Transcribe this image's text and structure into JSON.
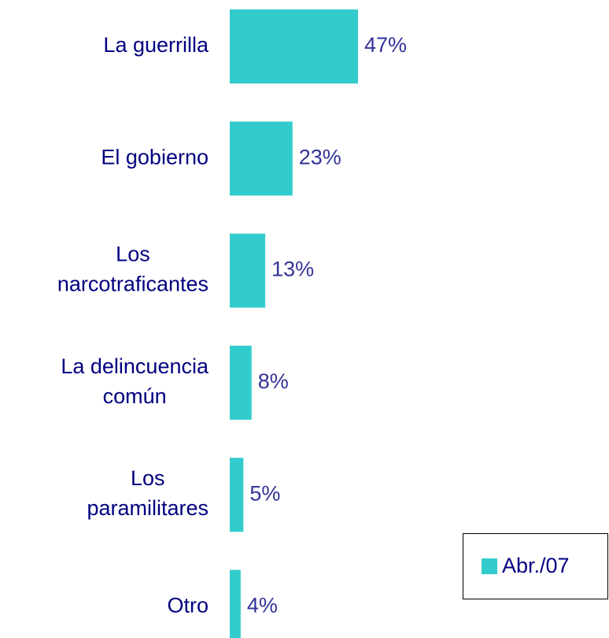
{
  "chart_data": {
    "type": "barh",
    "categories": [
      "La guerrilla",
      "El gobierno",
      "Los\nnarcotraficantes",
      "La delincuencia\ncomún",
      "Los\nparamilitares",
      "Otro"
    ],
    "series": [
      {
        "name": "Abr./07",
        "color": "#33cccc",
        "values": [
          47,
          23,
          13,
          8,
          5,
          4
        ],
        "value_labels": [
          "47%",
          "23%",
          "13%",
          "8%",
          "5%",
          "4%"
        ]
      }
    ]
  }
}
